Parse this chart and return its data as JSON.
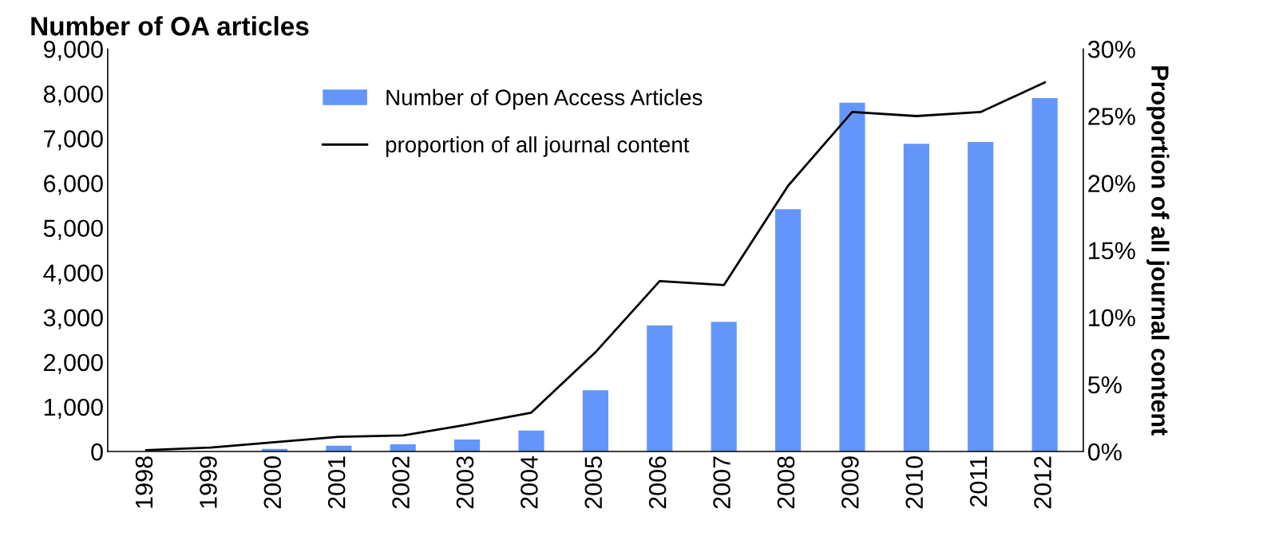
{
  "chart_data": {
    "type": "bar",
    "ylabel": "Number of OA articles",
    "y2label": "Proportion of all journal content",
    "categories": [
      "1998",
      "1999",
      "2000",
      "2001",
      "2002",
      "2003",
      "2004",
      "2005",
      "2006",
      "2007",
      "2008",
      "2009",
      "2010",
      "2011",
      "2012"
    ],
    "series": [
      {
        "name": "Number of Open Access Articles",
        "color": "#6495fa",
        "values": [
          null,
          null,
          60,
          130,
          160,
          270,
          470,
          1370,
          2820,
          2900,
          5420,
          7800,
          6880,
          6920,
          7900
        ]
      },
      {
        "name": "proportion of all journal content",
        "color": "#000000",
        "type": "line",
        "axis": "y2",
        "values": [
          0.1,
          0.3,
          0.7,
          1.1,
          1.2,
          2.0,
          2.9,
          7.4,
          12.7,
          12.4,
          19.8,
          25.3,
          25.0,
          25.3,
          27.5
        ]
      }
    ],
    "ylim": [
      0,
      9000
    ],
    "yticks": [
      {
        "value": 0,
        "label": "0"
      },
      {
        "value": 1000,
        "label": "1,000"
      },
      {
        "value": 2000,
        "label": "2,000"
      },
      {
        "value": 3000,
        "label": "3,000"
      },
      {
        "value": 4000,
        "label": "4,000"
      },
      {
        "value": 5000,
        "label": "5,000"
      },
      {
        "value": 6000,
        "label": "6,000"
      },
      {
        "value": 7000,
        "label": "7,000"
      },
      {
        "value": 8000,
        "label": "8,000"
      },
      {
        "value": 9000,
        "label": "9,000"
      }
    ],
    "y2lim": [
      0,
      30
    ],
    "y2ticks": [
      {
        "value": 0,
        "label": "0%"
      },
      {
        "value": 5,
        "label": "5%"
      },
      {
        "value": 10,
        "label": "10%"
      },
      {
        "value": 15,
        "label": "15%"
      },
      {
        "value": 20,
        "label": "20%"
      },
      {
        "value": 25,
        "label": "25%"
      },
      {
        "value": 30,
        "label": "30%"
      }
    ],
    "legend": "top left",
    "grid": false
  }
}
